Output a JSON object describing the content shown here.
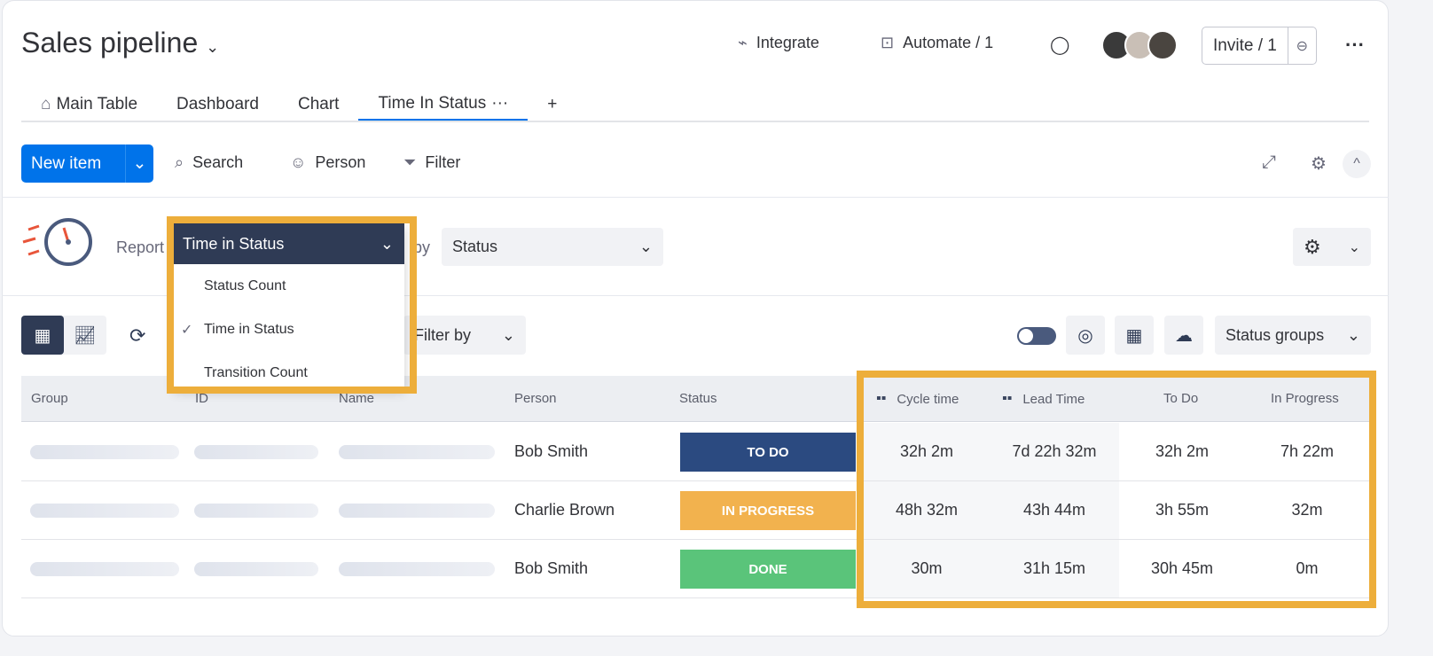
{
  "header": {
    "title": "Sales pipeline",
    "integrate": "Integrate",
    "automate": "Automate / 1",
    "invite": "Invite / 1"
  },
  "tabs": [
    {
      "label": "Main Table"
    },
    {
      "label": "Dashboard"
    },
    {
      "label": "Chart"
    },
    {
      "label": "Time In Status",
      "more": "···"
    }
  ],
  "add_tab": "+",
  "toolbar": {
    "new_item": "New item",
    "search": "Search",
    "person": "Person",
    "filter": "Filter"
  },
  "report": {
    "label": "Report",
    "by": "by",
    "selected": "Time in Status",
    "group_by": "Status",
    "options": [
      {
        "label": "Status Count",
        "checked": false
      },
      {
        "label": "Time in Status",
        "checked": true
      },
      {
        "label": "Transition Count",
        "checked": false
      }
    ]
  },
  "view": {
    "filter_by": "Filter by",
    "status_groups": "Status groups"
  },
  "table": {
    "columns": [
      "Group",
      "ID",
      "Name",
      "Person",
      "Status",
      "Cycle time",
      "Lead Time",
      "To Do",
      "In Progress"
    ],
    "rows": [
      {
        "person": "Bob Smith",
        "status": "TO DO",
        "status_color": "#2b4a80",
        "cycle": "32h 2m",
        "lead": "7d 22h 32m",
        "todo": "32h 2m",
        "inprogress": "7h 22m"
      },
      {
        "person": "Charlie Brown",
        "status": "IN PROGRESS",
        "status_color": "#f2b24e",
        "cycle": "48h 32m",
        "lead": "43h 44m",
        "todo": "3h 55m",
        "inprogress": "32m"
      },
      {
        "person": "Bob Smith",
        "status": "DONE",
        "status_color": "#5ac47a",
        "cycle": "30m",
        "lead": "31h 15m",
        "todo": "30h 45m",
        "inprogress": "0m"
      }
    ]
  },
  "colors": {
    "accent": "#0073ea",
    "highlight": "#edae3b",
    "dropdown_header": "#2f3b55"
  }
}
